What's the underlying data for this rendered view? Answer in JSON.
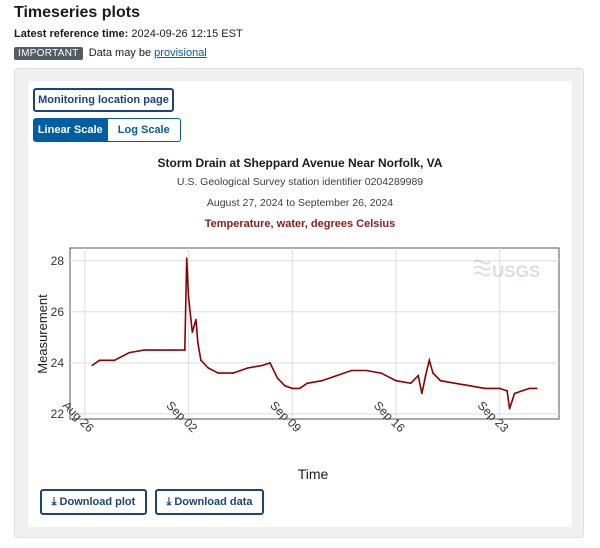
{
  "header": {
    "title": "Timeseries plots",
    "ref_label": "Latest reference time:",
    "ref_value": "2024-09-26 12:15 EST",
    "badge": "IMPORTANT",
    "notice_text": "Data may be",
    "notice_link": "provisional"
  },
  "buttons": {
    "monitoring": "Monitoring location page",
    "linear": "Linear Scale",
    "log": "Log Scale",
    "download_plot": "Download plot",
    "download_data": "Download data"
  },
  "chart_meta": {
    "title": "Storm Drain at Sheppard Avenue Near Norfolk, VA",
    "station": "U.S. Geological Survey station identifier 0204289989",
    "dates": "August 27, 2024 to September 26, 2024",
    "parameter": "Temperature, water, degrees Celsius",
    "watermark": "USGS"
  },
  "colors": {
    "series": "#8b0000",
    "accent": "#005ea2",
    "button_border": "#1a4480",
    "parameter_text": "#8b1a1a"
  },
  "icons": {
    "download": "download-icon",
    "usgs_logo": "usgs-logo-icon"
  },
  "chart_data": {
    "type": "line",
    "title": "Storm Drain at Sheppard Avenue Near Norfolk, VA",
    "xlabel": "Time",
    "ylabel": "Measurement",
    "ylim": [
      21.8,
      28.5
    ],
    "xlim": [
      "2024-08-25",
      "2024-09-27"
    ],
    "y_ticks": [
      22,
      24,
      26,
      28
    ],
    "x_ticks": [
      {
        "date": "2024-08-26",
        "label": "Aug 26"
      },
      {
        "date": "2024-09-02",
        "label": "Sep 02"
      },
      {
        "date": "2024-09-09",
        "label": "Sep 09"
      },
      {
        "date": "2024-09-16",
        "label": "Sep 16"
      },
      {
        "date": "2024-09-23",
        "label": "Sep 23"
      }
    ],
    "grid": true,
    "series": [
      {
        "x": [
          "2024-08-26T12:00",
          "2024-08-27T00:00",
          "2024-08-28T00:00",
          "2024-08-29T00:00",
          "2024-08-30T00:00",
          "2024-08-31T00:00",
          "2024-09-01T00:00",
          "2024-09-01T18:00",
          "2024-09-01T21:00",
          "2024-09-02T00:00",
          "2024-09-02T06:00",
          "2024-09-02T12:00",
          "2024-09-02T15:00",
          "2024-09-02T20:00",
          "2024-09-03T08:00",
          "2024-09-04T00:00",
          "2024-09-05T00:00",
          "2024-09-06T00:00",
          "2024-09-07T00:00",
          "2024-09-07T12:00",
          "2024-09-08T00:00",
          "2024-09-08T12:00",
          "2024-09-09T00:00",
          "2024-09-09T12:00",
          "2024-09-10T00:00",
          "2024-09-11T00:00",
          "2024-09-12T00:00",
          "2024-09-13T00:00",
          "2024-09-14T00:00",
          "2024-09-15T00:00",
          "2024-09-16T00:00",
          "2024-09-17T00:00",
          "2024-09-17T12:00",
          "2024-09-17T18:00",
          "2024-09-18T00:00",
          "2024-09-18T06:00",
          "2024-09-18T12:00",
          "2024-09-19T00:00",
          "2024-09-20T00:00",
          "2024-09-21T00:00",
          "2024-09-22T00:00",
          "2024-09-23T00:00",
          "2024-09-23T12:00",
          "2024-09-23T16:00",
          "2024-09-24T00:00",
          "2024-09-24T12:00",
          "2024-09-25T00:00",
          "2024-09-25T12:00"
        ],
        "y": [
          23.9,
          24.1,
          24.1,
          24.4,
          24.5,
          24.5,
          24.5,
          24.5,
          28.1,
          26.6,
          25.2,
          25.7,
          24.8,
          24.1,
          23.8,
          23.6,
          23.6,
          23.8,
          23.9,
          24.0,
          23.4,
          23.1,
          23.0,
          23.0,
          23.2,
          23.3,
          23.5,
          23.7,
          23.7,
          23.6,
          23.3,
          23.2,
          23.5,
          22.8,
          23.5,
          24.1,
          23.6,
          23.3,
          23.2,
          23.1,
          23.0,
          23.0,
          22.9,
          22.2,
          22.8,
          22.9,
          23.0,
          23.0
        ]
      }
    ]
  }
}
